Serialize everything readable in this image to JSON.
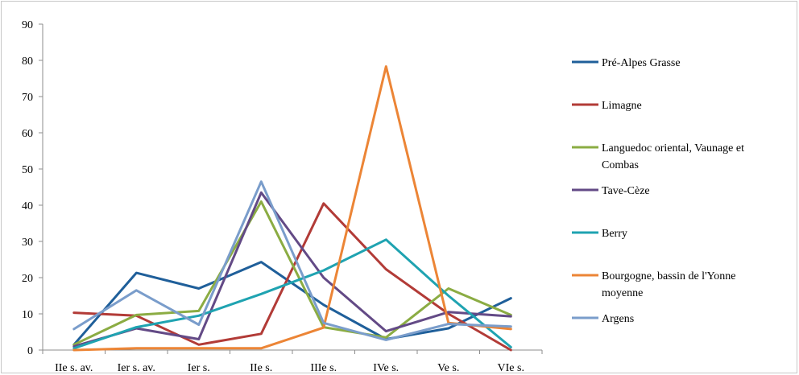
{
  "chart_data": {
    "type": "line",
    "categories": [
      "IIe s. av.",
      "Ier s. av.",
      "Ier s.",
      "IIe s.",
      "IIIe s.",
      "IVe s.",
      "Ve s.",
      "VIe s."
    ],
    "ylim": [
      0,
      90
    ],
    "yticks": [
      0,
      10,
      20,
      30,
      40,
      50,
      60,
      70,
      80,
      90
    ],
    "grid": false,
    "legend_position": "right",
    "series": [
      {
        "name": "Pré-Alpes Grasse",
        "color": "#1f5f9a",
        "values": [
          1.5,
          21.3,
          17,
          24.3,
          12.5,
          3,
          6,
          14.3
        ]
      },
      {
        "name": "Limagne",
        "color": "#b23b37",
        "values": [
          10.3,
          9.5,
          1.5,
          4.5,
          40.5,
          22.3,
          10,
          0
        ]
      },
      {
        "name": "Languedoc oriental, Vaunage et Combas",
        "color": "#8bac43",
        "values": [
          1.5,
          9.7,
          10.8,
          41,
          6.3,
          3.5,
          17,
          9.7
        ]
      },
      {
        "name": "Tave-Cèze",
        "color": "#634a86",
        "values": [
          1,
          6,
          3,
          43.5,
          20,
          5.2,
          10.5,
          9.3
        ]
      },
      {
        "name": "Berry",
        "color": "#1fa3b1",
        "values": [
          0.5,
          6.3,
          9.5,
          15.5,
          22,
          30.5,
          15,
          0.8
        ]
      },
      {
        "name": "Bourgogne, bassin de l'Yonne moyenne",
        "color": "#ec8536",
        "values": [
          0,
          0.5,
          0.5,
          0.5,
          6.2,
          78.3,
          7.5,
          5.8
        ]
      },
      {
        "name": "Argens",
        "color": "#7a9dcb",
        "values": [
          5.8,
          16.5,
          7,
          46.5,
          7.5,
          2.8,
          7.2,
          6.5
        ]
      }
    ]
  }
}
